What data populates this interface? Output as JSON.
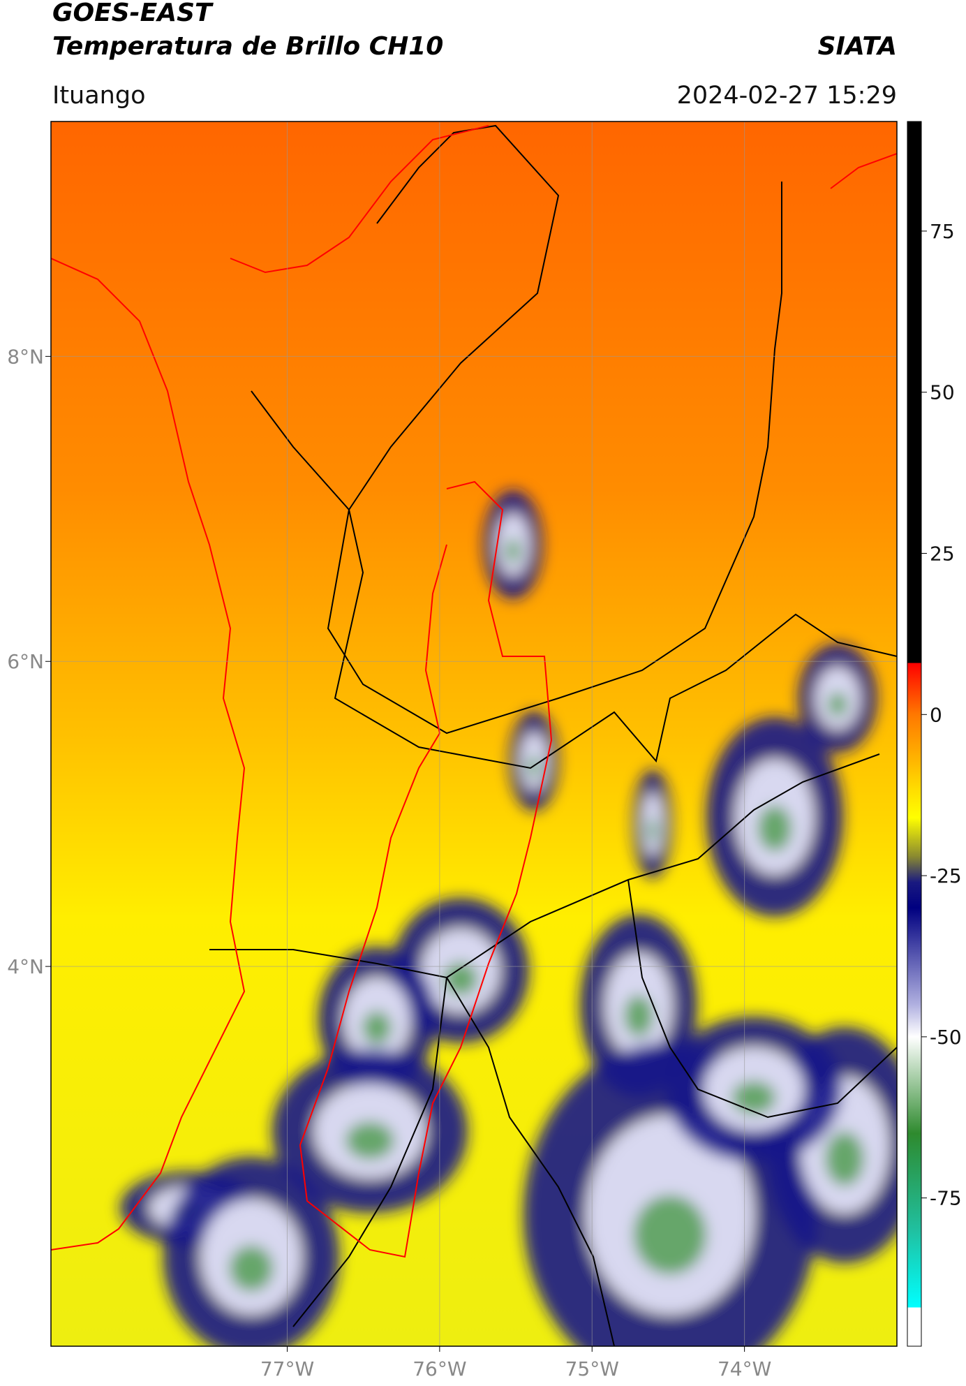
{
  "header": {
    "title": "GOES-EAST",
    "subtitle": "Temperatura de Brillo CH10",
    "agency": "SIATA",
    "location": "Ituango",
    "timestamp": "2024-02-27 15:29"
  },
  "map": {
    "xlim": [
      -78.55,
      -73.0
    ],
    "ylim": [
      1.51,
      9.54
    ],
    "xticks": [
      {
        "value": -77,
        "label": "77°W"
      },
      {
        "value": -76,
        "label": "76°W"
      },
      {
        "value": -75,
        "label": "75°W"
      },
      {
        "value": -74,
        "label": "74°W"
      }
    ],
    "yticks": [
      {
        "value": 4,
        "label": "4°N"
      },
      {
        "value": 6,
        "label": "6°N"
      },
      {
        "value": 8,
        "label": "8°N"
      }
    ],
    "grid": true
  },
  "colorbar": {
    "lim": [
      -98,
      92
    ],
    "ticks": [
      -75,
      -50,
      -25,
      0,
      25,
      50,
      75
    ],
    "colormap": [
      {
        "value": 92,
        "color": "#000000"
      },
      {
        "value": 8,
        "color": "#000000"
      },
      {
        "value": 8,
        "color": "#ff0000"
      },
      {
        "value": 0,
        "color": "#ff7800"
      },
      {
        "value": -12,
        "color": "#ffe000"
      },
      {
        "value": -16,
        "color": "#ffff00"
      },
      {
        "value": -22,
        "color": "#8a8a30"
      },
      {
        "value": -26,
        "color": "#1a1a80"
      },
      {
        "value": -30,
        "color": "#000080"
      },
      {
        "value": -45,
        "color": "#b0b0e0"
      },
      {
        "value": -50,
        "color": "#ffffff"
      },
      {
        "value": -65,
        "color": "#2e8a2e"
      },
      {
        "value": -80,
        "color": "#20c0a0"
      },
      {
        "value": -92,
        "color": "#00ffff"
      },
      {
        "value": -92,
        "color": "#ffffff"
      },
      {
        "value": -98,
        "color": "#ffffff"
      }
    ]
  }
}
